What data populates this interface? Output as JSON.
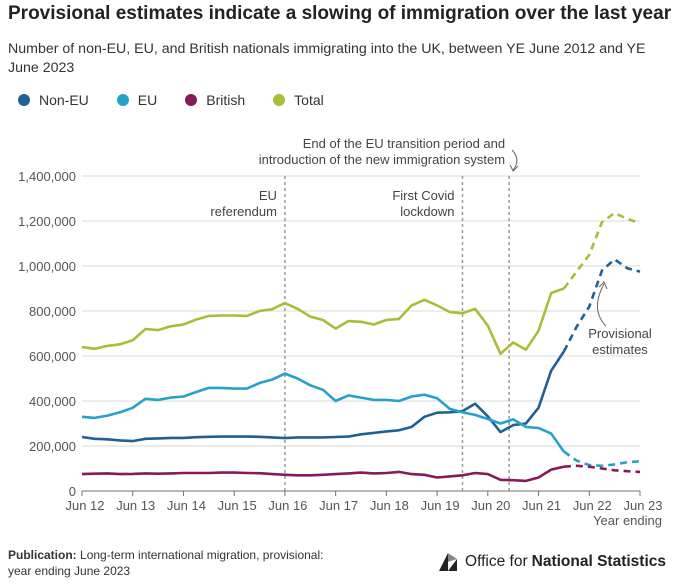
{
  "page": {
    "title": "Provisional estimates indicate a slowing of immigration over the last year",
    "subtitle": "Number of non-EU, EU, and British nationals immigrating into the UK, between YE June 2012 and YE June 2023",
    "footer_label": "Publication:",
    "footer_text": "Long-term international migration, provisional: year ending June 2023",
    "logo_text_regular": "Office for",
    "logo_text_bold": "National Statistics"
  },
  "colors": {
    "non_eu": "#206095",
    "eu": "#27a0cc",
    "british": "#871a5b",
    "total": "#a8bd3a",
    "grid": "#d9d9d9",
    "axis": "#707070",
    "marker": "#9a9a9a"
  },
  "legend": [
    {
      "label": "Non-EU",
      "color": "#206095"
    },
    {
      "label": "EU",
      "color": "#27a0cc"
    },
    {
      "label": "British",
      "color": "#871a5b"
    },
    {
      "label": "Total",
      "color": "#a8bd3a"
    }
  ],
  "chart_data": {
    "type": "line",
    "xlabel": "Year ending",
    "ylabel": "",
    "x_ticks": [
      "Jun 12",
      "Jun 13",
      "Jun 14",
      "Jun 15",
      "Jun 16",
      "Jun 17",
      "Jun 18",
      "Jun 19",
      "Jun 20",
      "Jun 21",
      "Jun 22",
      "Jun 23"
    ],
    "y_ticks": [
      "0",
      "200,000",
      "400,000",
      "600,000",
      "800,000",
      "1,000,000",
      "1,200,000",
      "1,400,000"
    ],
    "ylim": [
      0,
      1400000
    ],
    "xlim": [
      2012.5,
      2023.5
    ],
    "grid": "horizontal",
    "legend_position": "top-left",
    "provisional_from": 2022.0,
    "series": [
      {
        "name": "Non-EU",
        "key": "non_eu",
        "x": [
          2012.5,
          2012.75,
          2013.0,
          2013.25,
          2013.5,
          2013.75,
          2014.0,
          2014.25,
          2014.5,
          2014.75,
          2015.0,
          2015.25,
          2015.5,
          2015.75,
          2016.0,
          2016.25,
          2016.5,
          2016.75,
          2017.0,
          2017.25,
          2017.5,
          2017.75,
          2018.0,
          2018.25,
          2018.5,
          2018.75,
          2019.0,
          2019.25,
          2019.5,
          2019.75,
          2020.0,
          2020.25,
          2020.5,
          2020.75,
          2021.0,
          2021.25,
          2021.5,
          2021.75,
          2022.0,
          2022.25,
          2022.5,
          2022.75,
          2023.0,
          2023.25,
          2023.5
        ],
        "values": [
          240000,
          232000,
          230000,
          225000,
          222000,
          232000,
          234000,
          236000,
          236000,
          239000,
          241000,
          242000,
          242000,
          242000,
          241000,
          238000,
          235000,
          238000,
          238000,
          238000,
          240000,
          242000,
          252000,
          258000,
          265000,
          270000,
          285000,
          330000,
          348000,
          350000,
          355000,
          388000,
          332000,
          262000,
          293000,
          300000,
          370000,
          535000,
          620000,
          730000,
          820000,
          980000,
          1030000,
          990000,
          975000
        ]
      },
      {
        "name": "EU",
        "key": "eu",
        "x": [
          2012.5,
          2012.75,
          2013.0,
          2013.25,
          2013.5,
          2013.75,
          2014.0,
          2014.25,
          2014.5,
          2014.75,
          2015.0,
          2015.25,
          2015.5,
          2015.75,
          2016.0,
          2016.25,
          2016.5,
          2016.75,
          2017.0,
          2017.25,
          2017.5,
          2017.75,
          2018.0,
          2018.25,
          2018.5,
          2018.75,
          2019.0,
          2019.25,
          2019.5,
          2019.75,
          2020.0,
          2020.25,
          2020.5,
          2020.75,
          2021.0,
          2021.25,
          2021.5,
          2021.75,
          2022.0,
          2022.25,
          2022.5,
          2022.75,
          2023.0,
          2023.25,
          2023.5
        ],
        "values": [
          330000,
          325000,
          335000,
          350000,
          370000,
          410000,
          405000,
          415000,
          420000,
          440000,
          458000,
          458000,
          455000,
          455000,
          480000,
          495000,
          522000,
          500000,
          470000,
          450000,
          400000,
          425000,
          415000,
          405000,
          405000,
          400000,
          420000,
          428000,
          412000,
          365000,
          350000,
          338000,
          320000,
          300000,
          318000,
          285000,
          280000,
          255000,
          175000,
          135000,
          115000,
          112000,
          118000,
          128000,
          132000
        ]
      },
      {
        "name": "British",
        "key": "british",
        "x": [
          2012.5,
          2012.75,
          2013.0,
          2013.25,
          2013.5,
          2013.75,
          2014.0,
          2014.25,
          2014.5,
          2014.75,
          2015.0,
          2015.25,
          2015.5,
          2015.75,
          2016.0,
          2016.25,
          2016.5,
          2016.75,
          2017.0,
          2017.25,
          2017.5,
          2017.75,
          2018.0,
          2018.25,
          2018.5,
          2018.75,
          2019.0,
          2019.25,
          2019.5,
          2019.75,
          2020.0,
          2020.25,
          2020.5,
          2020.75,
          2021.0,
          2021.25,
          2021.5,
          2021.75,
          2022.0,
          2022.25,
          2022.5,
          2022.75,
          2023.0,
          2023.25,
          2023.5
        ],
        "values": [
          75000,
          77000,
          78000,
          75000,
          76000,
          78000,
          77000,
          78000,
          80000,
          80000,
          80000,
          82000,
          82000,
          80000,
          79000,
          75000,
          72000,
          70000,
          70000,
          72000,
          75000,
          78000,
          82000,
          78000,
          80000,
          85000,
          75000,
          72000,
          60000,
          65000,
          70000,
          80000,
          75000,
          50000,
          48000,
          45000,
          60000,
          95000,
          108000,
          112000,
          108000,
          100000,
          92000,
          88000,
          85000
        ]
      },
      {
        "name": "Total",
        "key": "total",
        "x": [
          2012.5,
          2012.75,
          2013.0,
          2013.25,
          2013.5,
          2013.75,
          2014.0,
          2014.25,
          2014.5,
          2014.75,
          2015.0,
          2015.25,
          2015.5,
          2015.75,
          2016.0,
          2016.25,
          2016.5,
          2016.75,
          2017.0,
          2017.25,
          2017.5,
          2017.75,
          2018.0,
          2018.25,
          2018.5,
          2018.75,
          2019.0,
          2019.25,
          2019.5,
          2019.75,
          2020.0,
          2020.25,
          2020.5,
          2020.75,
          2021.0,
          2021.25,
          2021.5,
          2021.75,
          2022.0,
          2022.25,
          2022.5,
          2022.75,
          2023.0,
          2023.25,
          2023.5
        ],
        "values": [
          640000,
          632000,
          645000,
          652000,
          670000,
          720000,
          715000,
          732000,
          740000,
          762000,
          778000,
          780000,
          780000,
          778000,
          800000,
          808000,
          835000,
          810000,
          775000,
          760000,
          722000,
          755000,
          752000,
          740000,
          760000,
          765000,
          825000,
          850000,
          825000,
          795000,
          790000,
          810000,
          735000,
          610000,
          660000,
          628000,
          712000,
          880000,
          900000,
          975000,
          1050000,
          1195000,
          1235000,
          1210000,
          1190000
        ]
      }
    ],
    "vertical_markers": [
      {
        "x": 2016.5,
        "label_lines": [
          "EU",
          "referendum"
        ]
      },
      {
        "x": 2020.0,
        "label_lines": [
          "First Covid",
          "lockdown"
        ]
      },
      {
        "x": 2020.92,
        "label_lines": [
          "End of the EU transition period and",
          "introduction of the new immigration system"
        ]
      }
    ],
    "annotations": [
      {
        "text_lines": [
          "Provisional",
          "estimates"
        ]
      }
    ]
  }
}
